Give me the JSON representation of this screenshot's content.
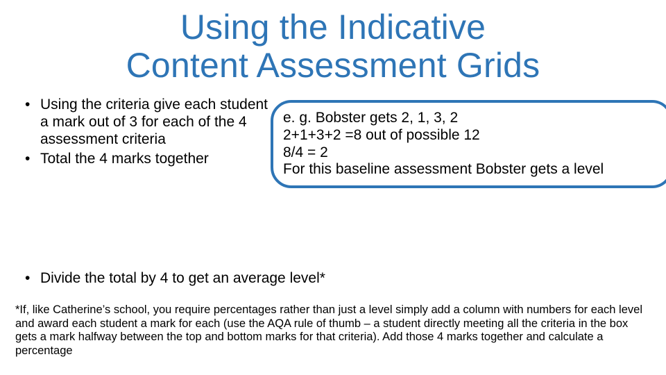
{
  "colors": {
    "accent": "#2e75b6",
    "text": "#000000",
    "background": "#ffffff",
    "callout_border": "#2e75b6"
  },
  "typography": {
    "family": "Arial",
    "title_fontsize": 50,
    "body_fontsize": 21,
    "footnote_fontsize": 16.5
  },
  "title": {
    "line1": "Using the Indicative",
    "line2": "Content Assessment Grids"
  },
  "bullets": {
    "item1": "Using the criteria give each student a mark out of 3 for each of the 4 assessment criteria",
    "item2": "Total the 4 marks together",
    "item3": "Divide the total by 4 to get an average level*"
  },
  "callout": {
    "line1": "e. g. Bobster gets 2, 1, 3, 2",
    "line2": "2+1+3+2 =8 out of possible 12",
    "line3": "8/4 = 2",
    "line4": "For this baseline assessment Bobster gets a level"
  },
  "footnote": "*If, like Catherine’s school, you require percentages rather than just a level simply add a column with numbers for each level and award each student a mark for each (use the AQA rule of thumb – a student directly meeting all the criteria in the box gets a mark halfway between the top and bottom marks for that criteria).  Add those 4 marks together and calculate a percentage"
}
